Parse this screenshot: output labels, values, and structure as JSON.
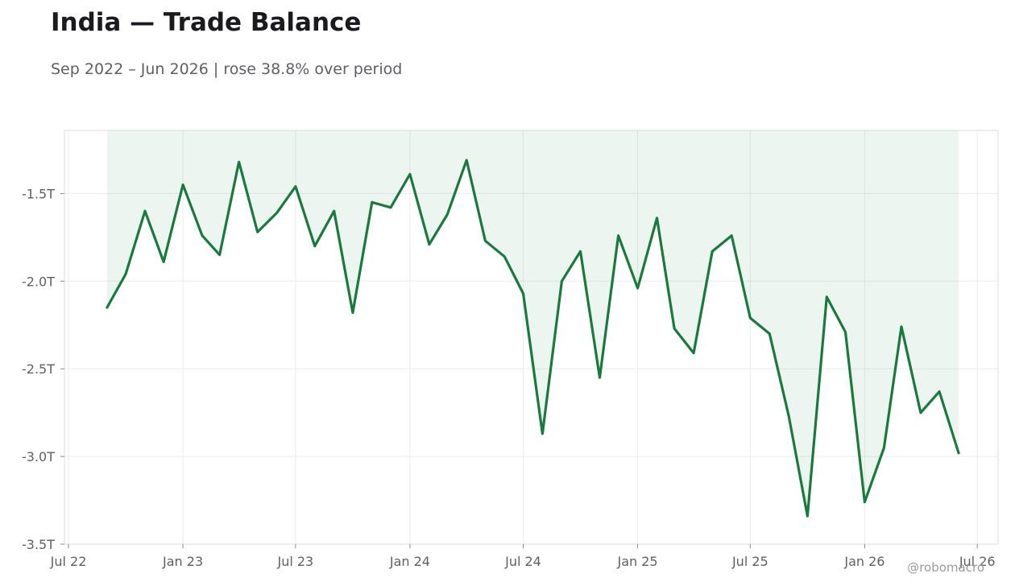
{
  "title": "India — Trade Balance",
  "subtitle": "Sep 2022 – Jun 2026 | rose 38.8% over period",
  "watermark": "@robomacro",
  "colors": {
    "line": "#1a7a3e",
    "fill": "#1a7a3e",
    "grid": "#ececec",
    "axis": "#dddddd"
  },
  "chart_data": {
    "type": "area",
    "title": "India — Trade Balance",
    "subtitle": "Sep 2022 – Jun 2026 | rose 38.8% over period",
    "xlabel": "",
    "ylabel": "",
    "unit": "T",
    "ylim": [
      -3.5,
      -1.14
    ],
    "xlim": [
      "2022-07-01",
      "2026-07-15"
    ],
    "grid": true,
    "legend": "none",
    "x_ticks": [
      {
        "date": "2022-07-01",
        "label": "Jul 22"
      },
      {
        "date": "2023-01-01",
        "label": "Jan 23"
      },
      {
        "date": "2023-07-01",
        "label": "Jul 23"
      },
      {
        "date": "2024-01-01",
        "label": "Jan 24"
      },
      {
        "date": "2024-07-01",
        "label": "Jul 24"
      },
      {
        "date": "2025-01-01",
        "label": "Jan 25"
      },
      {
        "date": "2025-07-01",
        "label": "Jul 25"
      },
      {
        "date": "2026-01-01",
        "label": "Jan 26"
      },
      {
        "date": "2026-07-01",
        "label": "Jul 26"
      }
    ],
    "y_ticks": [
      {
        "value": -1.5,
        "label": "-1.5T"
      },
      {
        "value": -2.0,
        "label": "-2.0T"
      },
      {
        "value": -2.5,
        "label": "-2.5T"
      },
      {
        "value": -3.0,
        "label": "-3.0T"
      },
      {
        "value": -3.5,
        "label": "-3.5T"
      }
    ],
    "x": [
      "2022-09",
      "2022-10",
      "2022-11",
      "2022-12",
      "2023-01",
      "2023-02",
      "2023-03",
      "2023-04",
      "2023-05",
      "2023-06",
      "2023-07",
      "2023-08",
      "2023-09",
      "2023-10",
      "2023-11",
      "2023-12",
      "2024-01",
      "2024-02",
      "2024-03",
      "2024-04",
      "2024-05",
      "2024-06",
      "2024-07",
      "2024-08",
      "2024-09",
      "2024-10",
      "2024-11",
      "2024-12",
      "2025-01",
      "2025-02",
      "2025-03",
      "2025-04",
      "2025-05",
      "2025-06",
      "2025-07",
      "2025-08",
      "2025-09",
      "2025-10",
      "2025-11",
      "2025-12",
      "2026-01",
      "2026-02",
      "2026-03",
      "2026-04",
      "2026-05",
      "2026-06"
    ],
    "values": [
      -2.15,
      -1.96,
      -1.6,
      -1.89,
      -1.45,
      -1.74,
      -1.85,
      -1.32,
      -1.72,
      -1.61,
      -1.46,
      -1.8,
      -1.6,
      -2.18,
      -1.55,
      -1.58,
      -1.39,
      -1.79,
      -1.62,
      -1.31,
      -1.77,
      -1.86,
      -2.07,
      -2.87,
      -2.0,
      -1.83,
      -2.55,
      -1.74,
      -2.04,
      -1.64,
      -2.27,
      -2.41,
      -1.83,
      -1.74,
      -2.21,
      -2.3,
      -2.77,
      -3.34,
      -2.09,
      -2.29,
      -3.26,
      -2.95,
      -2.26,
      -2.75,
      -2.63,
      -2.98
    ]
  }
}
